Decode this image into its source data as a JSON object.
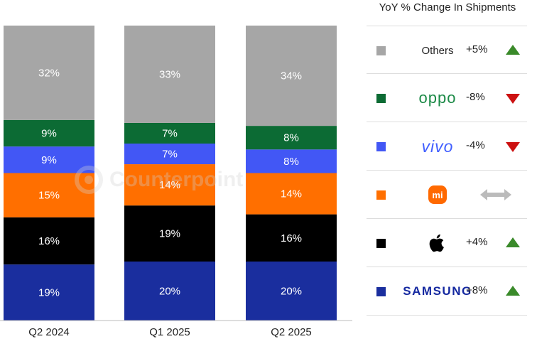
{
  "chart_data": {
    "type": "bar",
    "stacked": true,
    "categories": [
      "Q2 2024",
      "Q1 2025",
      "Q2 2025"
    ],
    "series": [
      {
        "name": "Samsung",
        "color": "#1a2e9e",
        "label_color": "#ffffff",
        "values": [
          19,
          20,
          20
        ],
        "labels": [
          "19%",
          "20%",
          "20%"
        ]
      },
      {
        "name": "Apple",
        "color": "#000000",
        "label_color": "#ffffff",
        "values": [
          16,
          19,
          16
        ],
        "labels": [
          "16%",
          "19%",
          "16%"
        ]
      },
      {
        "name": "Xiaomi",
        "color": "#ff6f00",
        "label_color": "#ffffff",
        "values": [
          15,
          14,
          14
        ],
        "labels": [
          "15%",
          "14%",
          "14%"
        ]
      },
      {
        "name": "vivo",
        "color": "#4257f5",
        "label_color": "#ffffff",
        "values": [
          9,
          7,
          8
        ],
        "labels": [
          "9%",
          "7%",
          "8%"
        ]
      },
      {
        "name": "OPPO",
        "color": "#0c6b34",
        "label_color": "#ffffff",
        "values": [
          9,
          7,
          8
        ],
        "labels": [
          "9%",
          "7%",
          "8%"
        ]
      },
      {
        "name": "Others",
        "color": "#a6a6a6",
        "label_color": "#ffffff",
        "values": [
          32,
          33,
          34
        ],
        "labels": [
          "32%",
          "33%",
          "34%"
        ]
      }
    ],
    "ylim": [
      0,
      100
    ],
    "grid": false,
    "legend_position": "right"
  },
  "legend": {
    "title": "YoY % Change In Shipments",
    "items": [
      {
        "brand": "Others",
        "color": "#a6a6a6",
        "change": "+5%",
        "trend": "up"
      },
      {
        "brand": "oppo",
        "color": "#0c6b34",
        "change": "-8%",
        "trend": "down"
      },
      {
        "brand": "vivo",
        "color": "#4257f5",
        "change": "-4%",
        "trend": "down"
      },
      {
        "brand": "mi",
        "color": "#ff6f00",
        "change": "",
        "trend": "flat"
      },
      {
        "brand": "apple",
        "color": "#000000",
        "change": "+4%",
        "trend": "up"
      },
      {
        "brand": "SAMSUNG",
        "color": "#1a2e9e",
        "change": "+8%",
        "trend": "up"
      }
    ]
  },
  "watermark": {
    "text": "Counterpoint"
  },
  "colors": {
    "up": "#3a8a2a",
    "down": "#cc1111",
    "flat": "#bbbbbb"
  }
}
